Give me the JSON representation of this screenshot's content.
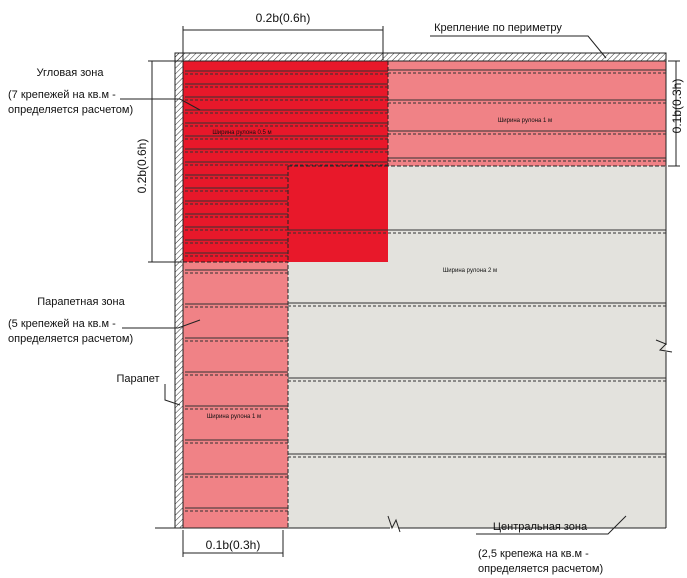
{
  "labels": {
    "top_dim": "0.2b(0.6h)",
    "perimeter": "Крепление по периметру",
    "corner_zone": "Угловая зона",
    "corner_note_1": "(7 крепежей на кв.м -",
    "corner_note_2": "определяется расчетом)",
    "left_dim": "0.2b(0.6h)",
    "right_dim": "0.1b(0.3h)",
    "parapet_zone": "Парапетная зона",
    "parapet_note_1": "(5 крепежей на кв.м -",
    "parapet_note_2": "определяется расчетом)",
    "parapet": "Парапет",
    "bottom_dim": "0.1b(0.3h)",
    "central_zone": "Центральная зона",
    "central_note_1": "(2,5 крепежа на кв.м -",
    "central_note_2": "определяется расчетом)",
    "roll_corner": "Ширина рулона 0.5 м",
    "roll_top_right": "Ширина рулона 1 м",
    "roll_center": "Ширина рулона 2 м",
    "roll_left": "Ширина рулона 1 м"
  },
  "colors": {
    "corner_zone": "#e8182a",
    "parapet_zone": "#f08286",
    "central_zone": "#e3e2dd",
    "line": "#222222"
  }
}
